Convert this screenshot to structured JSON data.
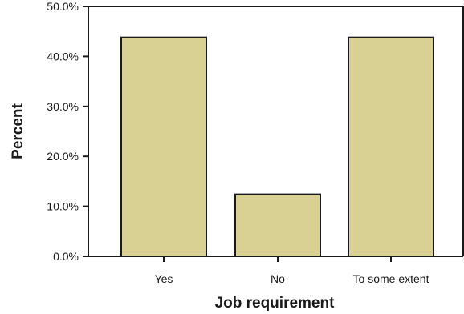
{
  "chart_data": {
    "type": "bar",
    "title": "",
    "xlabel": "Job requirement",
    "ylabel": "Percent",
    "categories": [
      "Yes",
      "No",
      "To some extent"
    ],
    "values": [
      43.8,
      12.4,
      43.8
    ],
    "ylim": [
      0,
      50
    ],
    "yticks": [
      0,
      10,
      20,
      30,
      40,
      50
    ],
    "ytick_labels": [
      "0.0%",
      "10.0%",
      "20.0%",
      "30.0%",
      "40.0%",
      "50.0%"
    ],
    "grid": false,
    "bar_color": "#d9d193",
    "bar_edge_color": "#1a1a1a"
  }
}
